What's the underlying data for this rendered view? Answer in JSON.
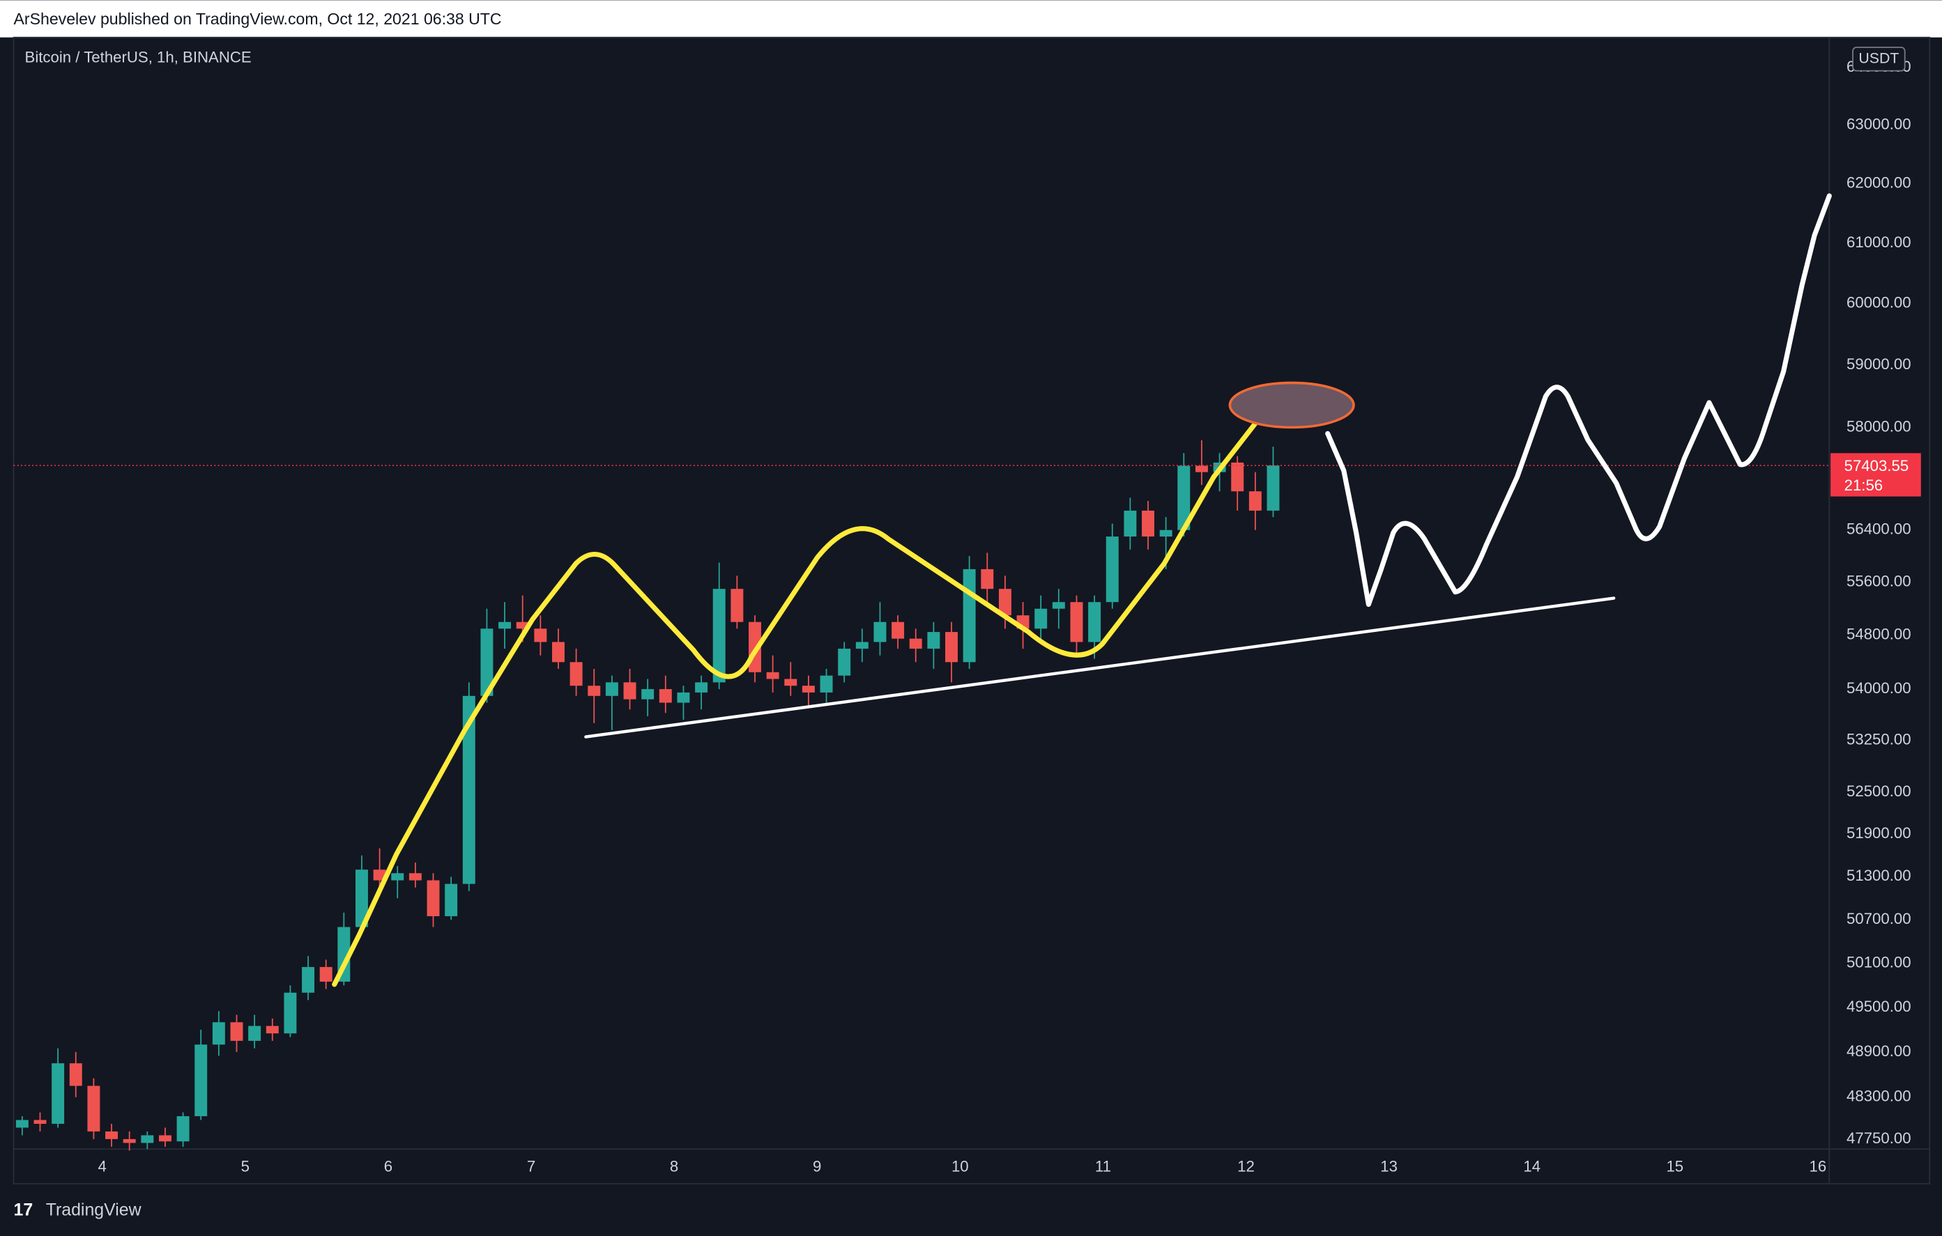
{
  "header": {
    "publisher": "ArShevelev published on TradingView.com, Oct 12, 2021 06:38 UTC"
  },
  "footer": {
    "logo": "TradingView"
  },
  "chart_data": {
    "type": "candlestick",
    "title": "Bitcoin / TetherUS, 1h, BINANCE",
    "currency": "USDT",
    "log_scale": true,
    "grid": false,
    "up_color": "#26a69a",
    "down_color": "#ef5350",
    "x": [
      3.44,
      3.565,
      3.69,
      3.815,
      3.94,
      4.065,
      4.19,
      4.315,
      4.44,
      4.565,
      4.69,
      4.815,
      4.94,
      5.065,
      5.19,
      5.315,
      5.44,
      5.565,
      5.69,
      5.815,
      5.94,
      6.065,
      6.19,
      6.315,
      6.44,
      6.565,
      6.69,
      6.815,
      6.94,
      7.065,
      7.19,
      7.315,
      7.44,
      7.565,
      7.69,
      7.815,
      7.94,
      8.065,
      8.19,
      8.315,
      8.44,
      8.565,
      8.69,
      8.815,
      8.94,
      9.065,
      9.19,
      9.315,
      9.44,
      9.565,
      9.69,
      9.815,
      9.94,
      10.065,
      10.19,
      10.315,
      10.44,
      10.565,
      10.69,
      10.815,
      10.94,
      11.065,
      11.19,
      11.315,
      11.44,
      11.565,
      11.69,
      11.815,
      11.94,
      12.065,
      12.19
    ],
    "open": [
      47900,
      48000,
      47950,
      48750,
      48450,
      47850,
      47750,
      47700,
      47800,
      47720,
      48050,
      49000,
      49300,
      49050,
      49250,
      49150,
      49700,
      50050,
      49850,
      50600,
      51400,
      51250,
      51350,
      51250,
      50750,
      51200,
      53900,
      54900,
      55000,
      54900,
      54700,
      54400,
      54050,
      53900,
      54100,
      53850,
      54000,
      53800,
      53950,
      54100,
      55500,
      55000,
      54250,
      54150,
      54050,
      53950,
      54200,
      54600,
      54700,
      55000,
      54750,
      54600,
      54850,
      54400,
      55800,
      55500,
      55100,
      54900,
      55200,
      55300,
      54700,
      55300,
      56300,
      56700,
      56300,
      56400,
      57400,
      57300,
      57450,
      57000,
      56700
    ],
    "high": [
      48050,
      48100,
      48950,
      48900,
      48550,
      47950,
      47850,
      47850,
      47900,
      48100,
      49200,
      49450,
      49400,
      49400,
      49350,
      49800,
      50200,
      50150,
      50800,
      51600,
      51700,
      51450,
      51500,
      51350,
      51300,
      54100,
      55200,
      55300,
      55400,
      55100,
      54900,
      54600,
      54300,
      54200,
      54300,
      54150,
      54200,
      54050,
      54200,
      55900,
      55700,
      55100,
      54500,
      54400,
      54200,
      54300,
      54700,
      54900,
      55300,
      55100,
      54900,
      55000,
      55000,
      56000,
      56050,
      55700,
      55300,
      55400,
      55500,
      55400,
      55400,
      56500,
      56900,
      56850,
      56600,
      57600,
      57800,
      57600,
      57550,
      57300,
      57700
    ],
    "low": [
      47800,
      47850,
      47900,
      48300,
      47750,
      47650,
      47600,
      47620,
      47650,
      47650,
      48000,
      48850,
      48900,
      48950,
      49050,
      49100,
      49600,
      49750,
      49800,
      50500,
      51100,
      51000,
      51150,
      50600,
      50700,
      51100,
      53800,
      54600,
      54700,
      54500,
      54300,
      53900,
      53500,
      53400,
      53700,
      53600,
      53650,
      53550,
      53700,
      54000,
      54900,
      54100,
      53950,
      53900,
      53750,
      53800,
      54100,
      54400,
      54500,
      54600,
      54400,
      54300,
      54100,
      54300,
      55300,
      54900,
      54600,
      54700,
      54900,
      54500,
      54450,
      55200,
      56100,
      56100,
      55800,
      56300,
      57100,
      57000,
      56700,
      56400,
      56600
    ],
    "close": [
      48000,
      47950,
      48750,
      48450,
      47850,
      47750,
      47700,
      47800,
      47720,
      48050,
      49000,
      49300,
      49050,
      49250,
      49150,
      49700,
      50050,
      49850,
      50600,
      51400,
      51250,
      51350,
      51250,
      50750,
      51200,
      53900,
      54900,
      55000,
      54900,
      54700,
      54400,
      54050,
      53900,
      54100,
      53850,
      54000,
      53800,
      53950,
      54100,
      55500,
      55000,
      54250,
      54150,
      54050,
      53950,
      54200,
      54600,
      54700,
      55000,
      54750,
      54600,
      54850,
      54400,
      55800,
      55500,
      55100,
      54900,
      55200,
      55300,
      54700,
      55300,
      56300,
      56700,
      56300,
      56400,
      57400,
      57300,
      57450,
      57000,
      56700,
      57403.55
    ],
    "xlim": [
      3.38,
      16.08
    ],
    "xticks": [
      4,
      5,
      6,
      7,
      8,
      9,
      10,
      11,
      12,
      13,
      14,
      15,
      16
    ],
    "ylim": [
      47620,
      64530
    ],
    "yticks": [
      {
        "value": 47750,
        "label": "47750.00"
      },
      {
        "value": 48300,
        "label": "48300.00"
      },
      {
        "value": 48900,
        "label": "48900.00"
      },
      {
        "value": 49500,
        "label": "49500.00"
      },
      {
        "value": 50100,
        "label": "50100.00"
      },
      {
        "value": 50700,
        "label": "50700.00"
      },
      {
        "value": 51300,
        "label": "51300.00"
      },
      {
        "value": 51900,
        "label": "51900.00"
      },
      {
        "value": 52500,
        "label": "52500.00"
      },
      {
        "value": 53250,
        "label": "53250.00"
      },
      {
        "value": 54000,
        "label": "54000.00"
      },
      {
        "value": 54800,
        "label": "54800.00"
      },
      {
        "value": 55600,
        "label": "55600.00"
      },
      {
        "value": 56400,
        "label": "56400.00"
      },
      {
        "value": 58000,
        "label": "58000.00"
      },
      {
        "value": 59000,
        "label": "59000.00"
      },
      {
        "value": 60000,
        "label": "60000.00"
      },
      {
        "value": 61000,
        "label": "61000.00"
      },
      {
        "value": 62000,
        "label": "62000.00"
      },
      {
        "value": 63000,
        "label": "63000.00"
      },
      {
        "value": 64000,
        "label": "64000.00"
      }
    ],
    "last_price": 57403.55,
    "countdown": "21:56",
    "last_price_color": "#f23645"
  }
}
